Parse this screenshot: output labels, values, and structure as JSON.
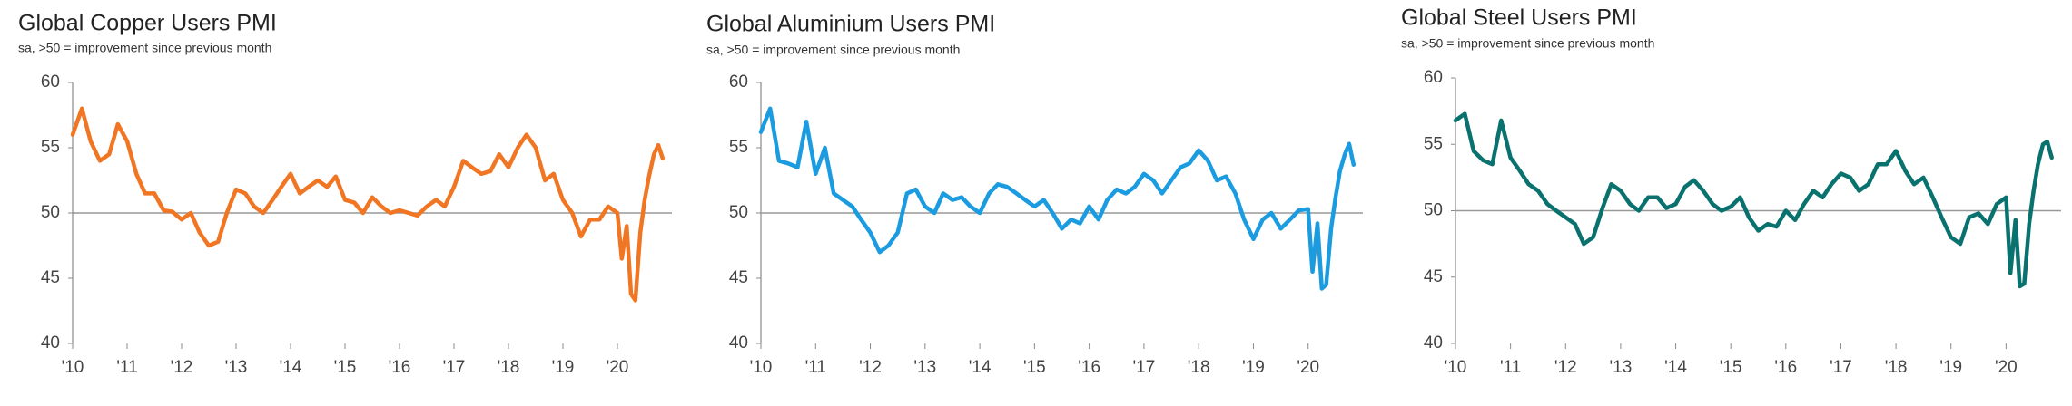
{
  "chart_data": [
    {
      "type": "line",
      "title": "Global Copper Users PMI",
      "subtitle": "sa, >50 = improvement since previous month",
      "x": [
        2010,
        2010.17,
        2010.33,
        2010.5,
        2010.67,
        2010.83,
        2011,
        2011.17,
        2011.33,
        2011.5,
        2011.67,
        2011.83,
        2012,
        2012.17,
        2012.33,
        2012.5,
        2012.67,
        2012.83,
        2013,
        2013.17,
        2013.33,
        2013.5,
        2013.67,
        2013.83,
        2014,
        2014.17,
        2014.33,
        2014.5,
        2014.67,
        2014.83,
        2015,
        2015.17,
        2015.33,
        2015.5,
        2015.67,
        2015.83,
        2016,
        2016.17,
        2016.33,
        2016.5,
        2016.67,
        2016.83,
        2017,
        2017.17,
        2017.33,
        2017.5,
        2017.67,
        2017.83,
        2018,
        2018.17,
        2018.33,
        2018.5,
        2018.67,
        2018.83,
        2019,
        2019.17,
        2019.33,
        2019.5,
        2019.67,
        2019.83,
        2020,
        2020.08,
        2020.17,
        2020.25,
        2020.33,
        2020.42,
        2020.5,
        2020.58,
        2020.67,
        2020.75,
        2020.83
      ],
      "series": [
        {
          "color": "#f07623",
          "values": [
            56,
            58,
            55.5,
            54,
            54.5,
            56.8,
            55.5,
            53,
            51.5,
            51.5,
            50.2,
            50.1,
            49.5,
            50,
            48.5,
            47.5,
            47.8,
            50,
            51.8,
            51.5,
            50.5,
            50,
            51,
            52,
            53,
            51.5,
            52,
            52.5,
            52,
            52.8,
            51,
            50.8,
            50,
            51.2,
            50.5,
            50,
            50.2,
            50,
            49.8,
            50.5,
            51,
            50.5,
            52,
            54,
            53.5,
            53,
            53.2,
            54.5,
            53.5,
            55,
            56,
            55,
            52.5,
            53,
            51,
            50,
            48.2,
            49.5,
            49.5,
            50.5,
            50,
            46.5,
            49,
            43.8,
            43.3,
            48.5,
            51,
            52.8,
            54.5,
            55.2,
            54.2
          ]
        }
      ],
      "xlim": [
        2010,
        2021
      ],
      "ylim": [
        40,
        60
      ],
      "yticks": [
        40,
        45,
        50,
        55,
        60
      ],
      "hline": 50,
      "xticks": [
        {
          "value": 2010,
          "label": "'10"
        },
        {
          "value": 2011,
          "label": "'11"
        },
        {
          "value": 2012,
          "label": "'12"
        },
        {
          "value": 2013,
          "label": "'13"
        },
        {
          "value": 2014,
          "label": "'14"
        },
        {
          "value": 2015,
          "label": "'15"
        },
        {
          "value": 2016,
          "label": "'16"
        },
        {
          "value": 2017,
          "label": "'17"
        },
        {
          "value": 2018,
          "label": "'18"
        },
        {
          "value": 2019,
          "label": "'19"
        },
        {
          "value": 2020,
          "label": "'20"
        }
      ]
    },
    {
      "type": "line",
      "title": "Global Aluminium Users PMI",
      "subtitle": "sa, >50 = improvement since previous month",
      "x": [
        2010,
        2010.17,
        2010.33,
        2010.5,
        2010.67,
        2010.83,
        2011,
        2011.17,
        2011.33,
        2011.5,
        2011.67,
        2011.83,
        2012,
        2012.17,
        2012.33,
        2012.5,
        2012.67,
        2012.83,
        2013,
        2013.17,
        2013.33,
        2013.5,
        2013.67,
        2013.83,
        2014,
        2014.17,
        2014.33,
        2014.5,
        2014.67,
        2014.83,
        2015,
        2015.17,
        2015.33,
        2015.5,
        2015.67,
        2015.83,
        2016,
        2016.17,
        2016.33,
        2016.5,
        2016.67,
        2016.83,
        2017,
        2017.17,
        2017.33,
        2017.5,
        2017.67,
        2017.83,
        2018,
        2018.17,
        2018.33,
        2018.5,
        2018.67,
        2018.83,
        2019,
        2019.17,
        2019.33,
        2019.5,
        2019.67,
        2019.83,
        2020,
        2020.08,
        2020.17,
        2020.25,
        2020.33,
        2020.42,
        2020.5,
        2020.58,
        2020.67,
        2020.75,
        2020.83
      ],
      "series": [
        {
          "color": "#1b9be0",
          "values": [
            56.2,
            58,
            54,
            53.8,
            53.5,
            57,
            53,
            55,
            51.5,
            51,
            50.5,
            49.5,
            48.5,
            47,
            47.5,
            48.5,
            51.5,
            51.8,
            50.5,
            50,
            51.5,
            51,
            51.2,
            50.5,
            50,
            51.5,
            52.2,
            52,
            51.5,
            51,
            50.5,
            51,
            50,
            48.8,
            49.5,
            49.2,
            50.5,
            49.5,
            51,
            51.8,
            51.5,
            52,
            53,
            52.5,
            51.5,
            52.5,
            53.5,
            53.8,
            54.8,
            54,
            52.5,
            52.8,
            51.5,
            49.5,
            48,
            49.5,
            50,
            48.8,
            49.5,
            50.2,
            50.3,
            45.5,
            49.2,
            44.2,
            44.5,
            48.8,
            51.2,
            53.2,
            54.5,
            55.3,
            53.7
          ]
        }
      ],
      "xlim": [
        2010,
        2021
      ],
      "ylim": [
        40,
        60
      ],
      "yticks": [
        40,
        45,
        50,
        55,
        60
      ],
      "hline": 50,
      "xticks": [
        {
          "value": 2010,
          "label": "'10"
        },
        {
          "value": 2011,
          "label": "'11"
        },
        {
          "value": 2012,
          "label": "'12"
        },
        {
          "value": 2013,
          "label": "'13"
        },
        {
          "value": 2014,
          "label": "'14"
        },
        {
          "value": 2015,
          "label": "'15"
        },
        {
          "value": 2016,
          "label": "'16"
        },
        {
          "value": 2017,
          "label": "'17"
        },
        {
          "value": 2018,
          "label": "'18"
        },
        {
          "value": 2019,
          "label": "'19"
        },
        {
          "value": 2020,
          "label": "'20"
        }
      ]
    },
    {
      "type": "line",
      "title": "Global Steel Users PMI",
      "subtitle": "sa, >50 = improvement since previous month",
      "x": [
        2010,
        2010.17,
        2010.33,
        2010.5,
        2010.67,
        2010.83,
        2011,
        2011.17,
        2011.33,
        2011.5,
        2011.67,
        2011.83,
        2012,
        2012.17,
        2012.33,
        2012.5,
        2012.67,
        2012.83,
        2013,
        2013.17,
        2013.33,
        2013.5,
        2013.67,
        2013.83,
        2014,
        2014.17,
        2014.33,
        2014.5,
        2014.67,
        2014.83,
        2015,
        2015.17,
        2015.33,
        2015.5,
        2015.67,
        2015.83,
        2016,
        2016.17,
        2016.33,
        2016.5,
        2016.67,
        2016.83,
        2017,
        2017.17,
        2017.33,
        2017.5,
        2017.67,
        2017.83,
        2018,
        2018.17,
        2018.33,
        2018.5,
        2018.67,
        2018.83,
        2019,
        2019.17,
        2019.33,
        2019.5,
        2019.67,
        2019.83,
        2020,
        2020.08,
        2020.17,
        2020.25,
        2020.33,
        2020.42,
        2020.5,
        2020.58,
        2020.67,
        2020.75,
        2020.83
      ],
      "series": [
        {
          "color": "#0a726e",
          "values": [
            56.8,
            57.3,
            54.5,
            53.8,
            53.5,
            56.8,
            54,
            53,
            52,
            51.5,
            50.5,
            50,
            49.5,
            49,
            47.5,
            48,
            50.2,
            52,
            51.5,
            50.5,
            50,
            51,
            51,
            50.2,
            50.5,
            51.8,
            52.3,
            51.5,
            50.5,
            50,
            50.3,
            51,
            49.5,
            48.5,
            49,
            48.8,
            50,
            49.3,
            50.5,
            51.5,
            51,
            52,
            52.8,
            52.5,
            51.5,
            52,
            53.5,
            53.5,
            54.5,
            53,
            52,
            52.5,
            51,
            49.5,
            48,
            47.5,
            49.5,
            49.8,
            49,
            50.5,
            51,
            45.3,
            49.3,
            44.3,
            44.5,
            49,
            51.5,
            53.5,
            55,
            55.2,
            54
          ]
        }
      ],
      "xlim": [
        2010,
        2021
      ],
      "ylim": [
        40,
        60
      ],
      "yticks": [
        40,
        45,
        50,
        55,
        60
      ],
      "hline": 50,
      "xticks": [
        {
          "value": 2010,
          "label": "'10"
        },
        {
          "value": 2011,
          "label": "'11"
        },
        {
          "value": 2012,
          "label": "'12"
        },
        {
          "value": 2013,
          "label": "'13"
        },
        {
          "value": 2014,
          "label": "'14"
        },
        {
          "value": 2015,
          "label": "'15"
        },
        {
          "value": 2016,
          "label": "'16"
        },
        {
          "value": 2017,
          "label": "'17"
        },
        {
          "value": 2018,
          "label": "'18"
        },
        {
          "value": 2019,
          "label": "'19"
        },
        {
          "value": 2020,
          "label": "'20"
        }
      ]
    }
  ]
}
